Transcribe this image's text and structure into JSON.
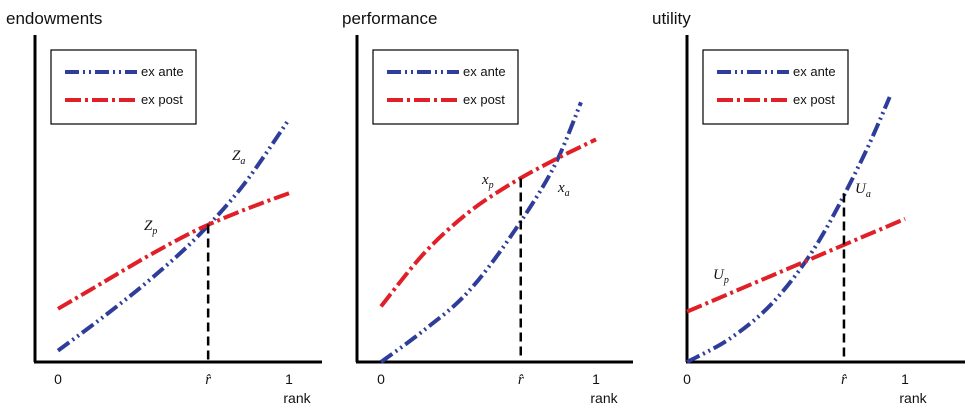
{
  "chart_data": [
    {
      "type": "line",
      "title": "endowments",
      "xlabel": "rank",
      "x_ticks": [
        "0",
        "r̂",
        "1"
      ],
      "x_tick_values": [
        0,
        0.65,
        1
      ],
      "xlim": [
        -0.1,
        1.3
      ],
      "ylim": [
        0,
        1
      ],
      "r_hat": 0.65,
      "legend": {
        "placement": "top-left",
        "entries": [
          "ex ante",
          "ex post"
        ]
      },
      "series": [
        {
          "name": "ex ante",
          "color": "#2e3d9a",
          "style": "dash-dot-dot",
          "label_main": "Z",
          "label_sub": "a",
          "x": [
            0,
            0.2,
            0.4,
            0.6,
            0.8,
            1.0
          ],
          "y": [
            0.03,
            0.17,
            0.32,
            0.49,
            0.7,
            0.97
          ]
        },
        {
          "name": "ex post",
          "color": "#e01f26",
          "style": "dash-dot",
          "label_main": "Z",
          "label_sub": "p",
          "x": [
            0,
            0.2,
            0.4,
            0.6,
            0.8,
            1.0
          ],
          "y": [
            0.2,
            0.31,
            0.42,
            0.52,
            0.6,
            0.67
          ]
        }
      ]
    },
    {
      "type": "line",
      "title": "performance",
      "xlabel": "rank",
      "x_ticks": [
        "0",
        "r̂",
        "1"
      ],
      "x_tick_values": [
        0,
        0.65,
        1
      ],
      "xlim": [
        -0.1,
        1.3
      ],
      "ylim": [
        0,
        1
      ],
      "r_hat": 0.65,
      "legend": {
        "placement": "top-left",
        "entries": [
          "ex ante",
          "ex post"
        ]
      },
      "series": [
        {
          "name": "ex ante",
          "color": "#2e3d9a",
          "style": "dash-dot-dot",
          "label_main": "x",
          "label_sub": "a",
          "x": [
            0,
            0.2,
            0.4,
            0.6,
            0.8,
            0.93
          ],
          "y": [
            0.0,
            0.12,
            0.26,
            0.47,
            0.73,
            0.98
          ]
        },
        {
          "name": "ex post",
          "color": "#e01f26",
          "style": "dash-dot",
          "label_main": "x",
          "label_sub": "p",
          "x": [
            0,
            0.2,
            0.4,
            0.6,
            0.8,
            1.0
          ],
          "y": [
            0.21,
            0.41,
            0.56,
            0.67,
            0.76,
            0.84
          ]
        }
      ]
    },
    {
      "type": "line",
      "title": "utility",
      "xlabel": "rank",
      "x_ticks": [
        "0",
        "r̂",
        "1"
      ],
      "x_tick_values": [
        0,
        0.72,
        1
      ],
      "xlim": [
        -0.1,
        1.3
      ],
      "ylim": [
        0,
        1
      ],
      "r_hat": 0.72,
      "legend": {
        "placement": "top-left",
        "entries": [
          "ex ante",
          "ex post"
        ]
      },
      "series": [
        {
          "name": "ex ante",
          "color": "#2e3d9a",
          "style": "dash-dot-dot",
          "label_main": "U",
          "label_sub": "a",
          "x": [
            0,
            0.2,
            0.4,
            0.6,
            0.8,
            0.93
          ],
          "y": [
            0.0,
            0.09,
            0.23,
            0.45,
            0.76,
            1.0
          ]
        },
        {
          "name": "ex post",
          "color": "#e01f26",
          "style": "dash-dot",
          "label_main": "U",
          "label_sub": "p",
          "x": [
            0,
            0.2,
            0.4,
            0.6,
            0.8,
            1.0
          ],
          "y": [
            0.19,
            0.26,
            0.33,
            0.4,
            0.47,
            0.54
          ]
        }
      ]
    }
  ]
}
